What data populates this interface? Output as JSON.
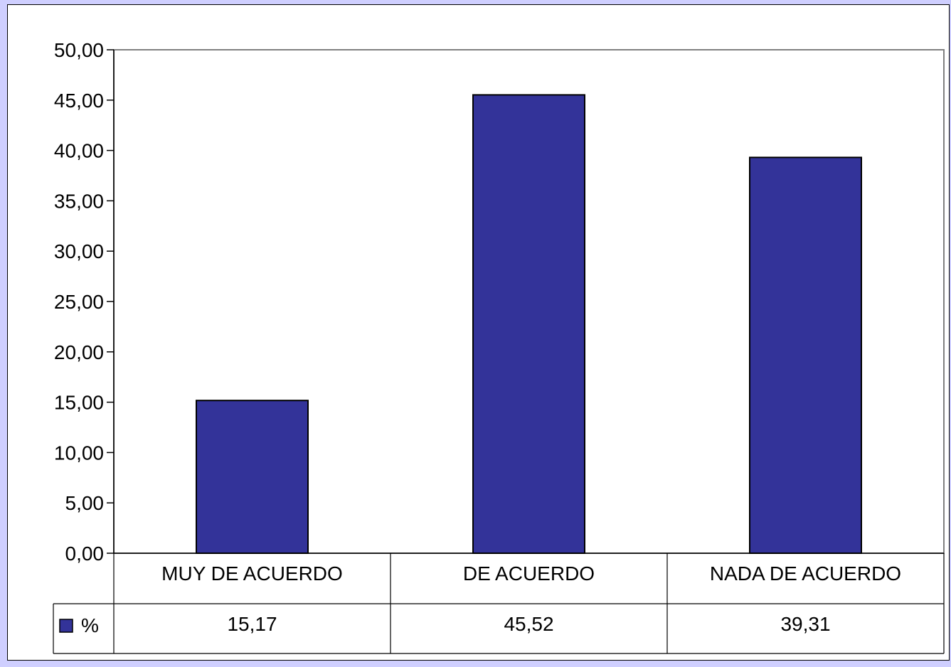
{
  "chart_data": {
    "type": "bar",
    "categories": [
      "MUY  DE ACUERDO",
      "DE ACUERDO",
      "NADA  DE ACUERDO"
    ],
    "series": [
      {
        "name": "%",
        "values": [
          15.17,
          45.52,
          39.31
        ]
      }
    ],
    "value_labels": [
      "15,17",
      "45,52",
      "39,31"
    ],
    "y_tick_labels": [
      "0,00",
      "5,00",
      "10,00",
      "15,00",
      "20,00",
      "25,00",
      "30,00",
      "35,00",
      "40,00",
      "45,00",
      "50,00"
    ],
    "ylim": [
      0,
      50
    ],
    "ytick_step": 5,
    "grid": false,
    "legend": "data-table",
    "colors": {
      "bar": "#333399",
      "page_background": "#cfcfff",
      "plot_border": "#808080"
    }
  }
}
